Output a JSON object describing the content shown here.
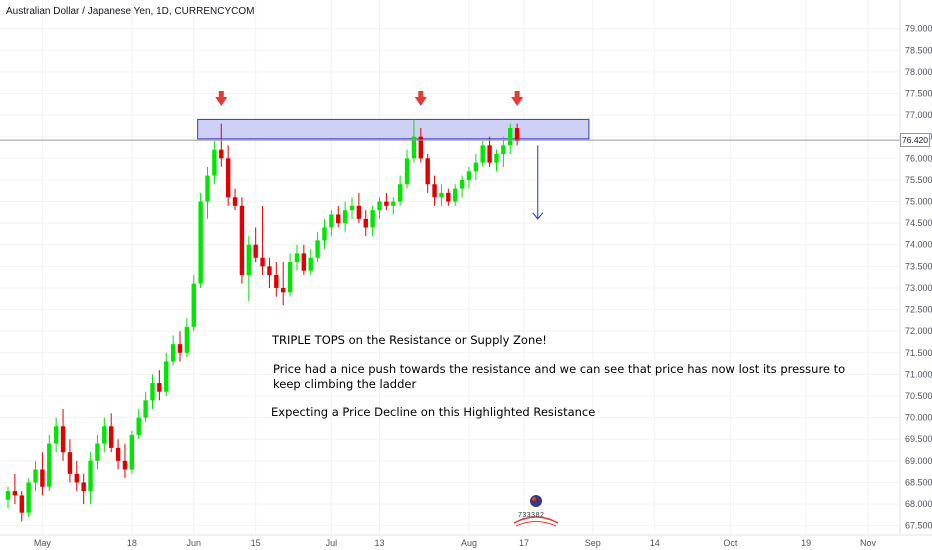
{
  "header": {
    "symbol_title": "Australian Dollar / Japanese Yen, 1D, CURRENCYCOM"
  },
  "annotations": {
    "headline": "TRIPLE TOPS on the Resistance or Supply Zone!",
    "body_line1": "Price had a nice push towards the resistance and we can see that price has now lost its pressure to",
    "body_line2": "keep climbing the ladder",
    "expectation": "Expecting a Price Decline on this Highlighted Resistance"
  },
  "last_price_label": "76.420",
  "logo_text": "733382",
  "colors": {
    "up": "#00e600",
    "down": "#e00000",
    "zone_fill": "#c5c8f5",
    "zone_border": "#3838c8",
    "marker": "#e53935",
    "projection": "#2233bb"
  },
  "chart_data": {
    "type": "candlestick",
    "title": "Australian Dollar / Japanese Yen, 1D, CURRENCYCOM",
    "y_ticks": [
      "79.000",
      "78.500",
      "78.000",
      "77.500",
      "77.000",
      "76.500",
      "76.000",
      "75.500",
      "75.000",
      "74.500",
      "74.000",
      "73.500",
      "73.000",
      "72.500",
      "72.000",
      "71.500",
      "71.000",
      "70.500",
      "70.000",
      "69.500",
      "69.000",
      "68.500",
      "68.000",
      "67.500"
    ],
    "x_ticks": [
      {
        "label": "May",
        "index": 5
      },
      {
        "label": "18",
        "index": 18
      },
      {
        "label": "Jun",
        "index": 27
      },
      {
        "label": "15",
        "index": 36
      },
      {
        "label": "Jul",
        "index": 47
      },
      {
        "label": "13",
        "index": 54
      },
      {
        "label": "Aug",
        "index": 67
      },
      {
        "label": "17",
        "index": 75
      },
      {
        "label": "Sep",
        "index": 85
      },
      {
        "label": "14",
        "index": 94
      },
      {
        "label": "Oct",
        "index": 105
      },
      {
        "label": "19",
        "index": 116
      },
      {
        "label": "Nov",
        "index": 125
      }
    ],
    "ylim": [
      67.4,
      79.2
    ],
    "resistance_zone": {
      "from": 76.45,
      "to": 76.9,
      "start_index": 28,
      "end_index": 84
    },
    "triple_top_markers": [
      31,
      60,
      74
    ],
    "projection": {
      "index": 77,
      "from": 76.3,
      "to": 74.6
    },
    "last_price": 76.42,
    "candles": [
      [
        68.1,
        68.4,
        67.9,
        68.3
      ],
      [
        68.3,
        68.7,
        68.0,
        68.2
      ],
      [
        68.2,
        68.3,
        67.6,
        67.8
      ],
      [
        67.8,
        68.6,
        67.7,
        68.5
      ],
      [
        68.5,
        69.0,
        68.3,
        68.8
      ],
      [
        68.8,
        69.2,
        68.2,
        68.4
      ],
      [
        68.4,
        69.6,
        68.3,
        69.4
      ],
      [
        69.4,
        70.0,
        69.2,
        69.8
      ],
      [
        69.8,
        70.2,
        69.0,
        69.2
      ],
      [
        69.2,
        69.5,
        68.5,
        68.7
      ],
      [
        68.7,
        69.0,
        68.3,
        68.5
      ],
      [
        68.5,
        68.7,
        68.0,
        68.3
      ],
      [
        68.3,
        69.2,
        68.0,
        69.0
      ],
      [
        69.0,
        69.6,
        68.8,
        69.4
      ],
      [
        69.4,
        70.0,
        69.2,
        69.8
      ],
      [
        69.8,
        70.1,
        69.2,
        69.3
      ],
      [
        69.3,
        69.5,
        68.8,
        69.0
      ],
      [
        69.0,
        69.4,
        68.6,
        68.8
      ],
      [
        68.8,
        69.7,
        68.7,
        69.6
      ],
      [
        69.6,
        70.2,
        69.5,
        70.0
      ],
      [
        70.0,
        70.6,
        69.9,
        70.4
      ],
      [
        70.4,
        71.0,
        70.2,
        70.8
      ],
      [
        70.8,
        71.1,
        70.4,
        70.6
      ],
      [
        70.6,
        71.5,
        70.5,
        71.3
      ],
      [
        71.3,
        71.9,
        71.2,
        71.7
      ],
      [
        71.7,
        72.0,
        71.3,
        71.5
      ],
      [
        71.5,
        72.3,
        71.4,
        72.1
      ],
      [
        72.1,
        73.3,
        72.0,
        73.1
      ],
      [
        73.1,
        75.2,
        73.0,
        75.0
      ],
      [
        75.0,
        75.8,
        74.6,
        75.6
      ],
      [
        75.6,
        76.4,
        75.4,
        76.2
      ],
      [
        76.2,
        76.8,
        75.8,
        76.0
      ],
      [
        76.0,
        76.3,
        74.9,
        75.1
      ],
      [
        75.1,
        75.3,
        74.8,
        74.9
      ],
      [
        74.9,
        75.1,
        73.1,
        73.3
      ],
      [
        73.3,
        74.2,
        72.7,
        74.0
      ],
      [
        74.0,
        74.4,
        73.6,
        73.7
      ],
      [
        73.7,
        74.9,
        73.3,
        73.5
      ],
      [
        73.5,
        73.7,
        73.0,
        73.3
      ],
      [
        73.3,
        73.6,
        72.8,
        73.0
      ],
      [
        73.0,
        73.6,
        72.6,
        72.9
      ],
      [
        72.9,
        73.8,
        72.8,
        73.6
      ],
      [
        73.6,
        74.0,
        73.4,
        73.8
      ],
      [
        73.8,
        74.0,
        73.3,
        73.4
      ],
      [
        73.4,
        73.9,
        73.3,
        73.7
      ],
      [
        73.7,
        74.3,
        73.6,
        74.1
      ],
      [
        74.1,
        74.6,
        73.9,
        74.4
      ],
      [
        74.4,
        74.8,
        74.2,
        74.7
      ],
      [
        74.7,
        74.9,
        74.4,
        74.5
      ],
      [
        74.5,
        75.0,
        74.3,
        74.8
      ],
      [
        74.8,
        75.1,
        74.6,
        74.9
      ],
      [
        74.9,
        75.2,
        74.5,
        74.6
      ],
      [
        74.6,
        74.8,
        74.2,
        74.4
      ],
      [
        74.4,
        74.9,
        74.2,
        74.8
      ],
      [
        74.8,
        75.1,
        74.6,
        75.0
      ],
      [
        75.0,
        75.2,
        74.8,
        74.9
      ],
      [
        74.9,
        75.1,
        74.7,
        75.0
      ],
      [
        75.0,
        75.6,
        74.9,
        75.4
      ],
      [
        75.4,
        76.2,
        75.3,
        76.0
      ],
      [
        76.0,
        76.9,
        75.9,
        76.5
      ],
      [
        76.5,
        76.7,
        75.9,
        76.0
      ],
      [
        76.0,
        76.1,
        75.2,
        75.4
      ],
      [
        75.4,
        75.6,
        74.9,
        75.1
      ],
      [
        75.1,
        75.4,
        74.9,
        75.2
      ],
      [
        75.2,
        75.3,
        74.9,
        75.0
      ],
      [
        75.0,
        75.4,
        74.9,
        75.3
      ],
      [
        75.3,
        75.6,
        75.1,
        75.5
      ],
      [
        75.5,
        75.8,
        75.3,
        75.7
      ],
      [
        75.7,
        76.1,
        75.5,
        75.9
      ],
      [
        75.9,
        76.4,
        75.8,
        76.3
      ],
      [
        76.3,
        76.5,
        75.8,
        75.9
      ],
      [
        75.9,
        76.2,
        75.7,
        76.1
      ],
      [
        76.1,
        76.5,
        75.8,
        76.3
      ],
      [
        76.3,
        76.8,
        76.1,
        76.7
      ],
      [
        76.7,
        76.8,
        76.3,
        76.4
      ]
    ]
  }
}
